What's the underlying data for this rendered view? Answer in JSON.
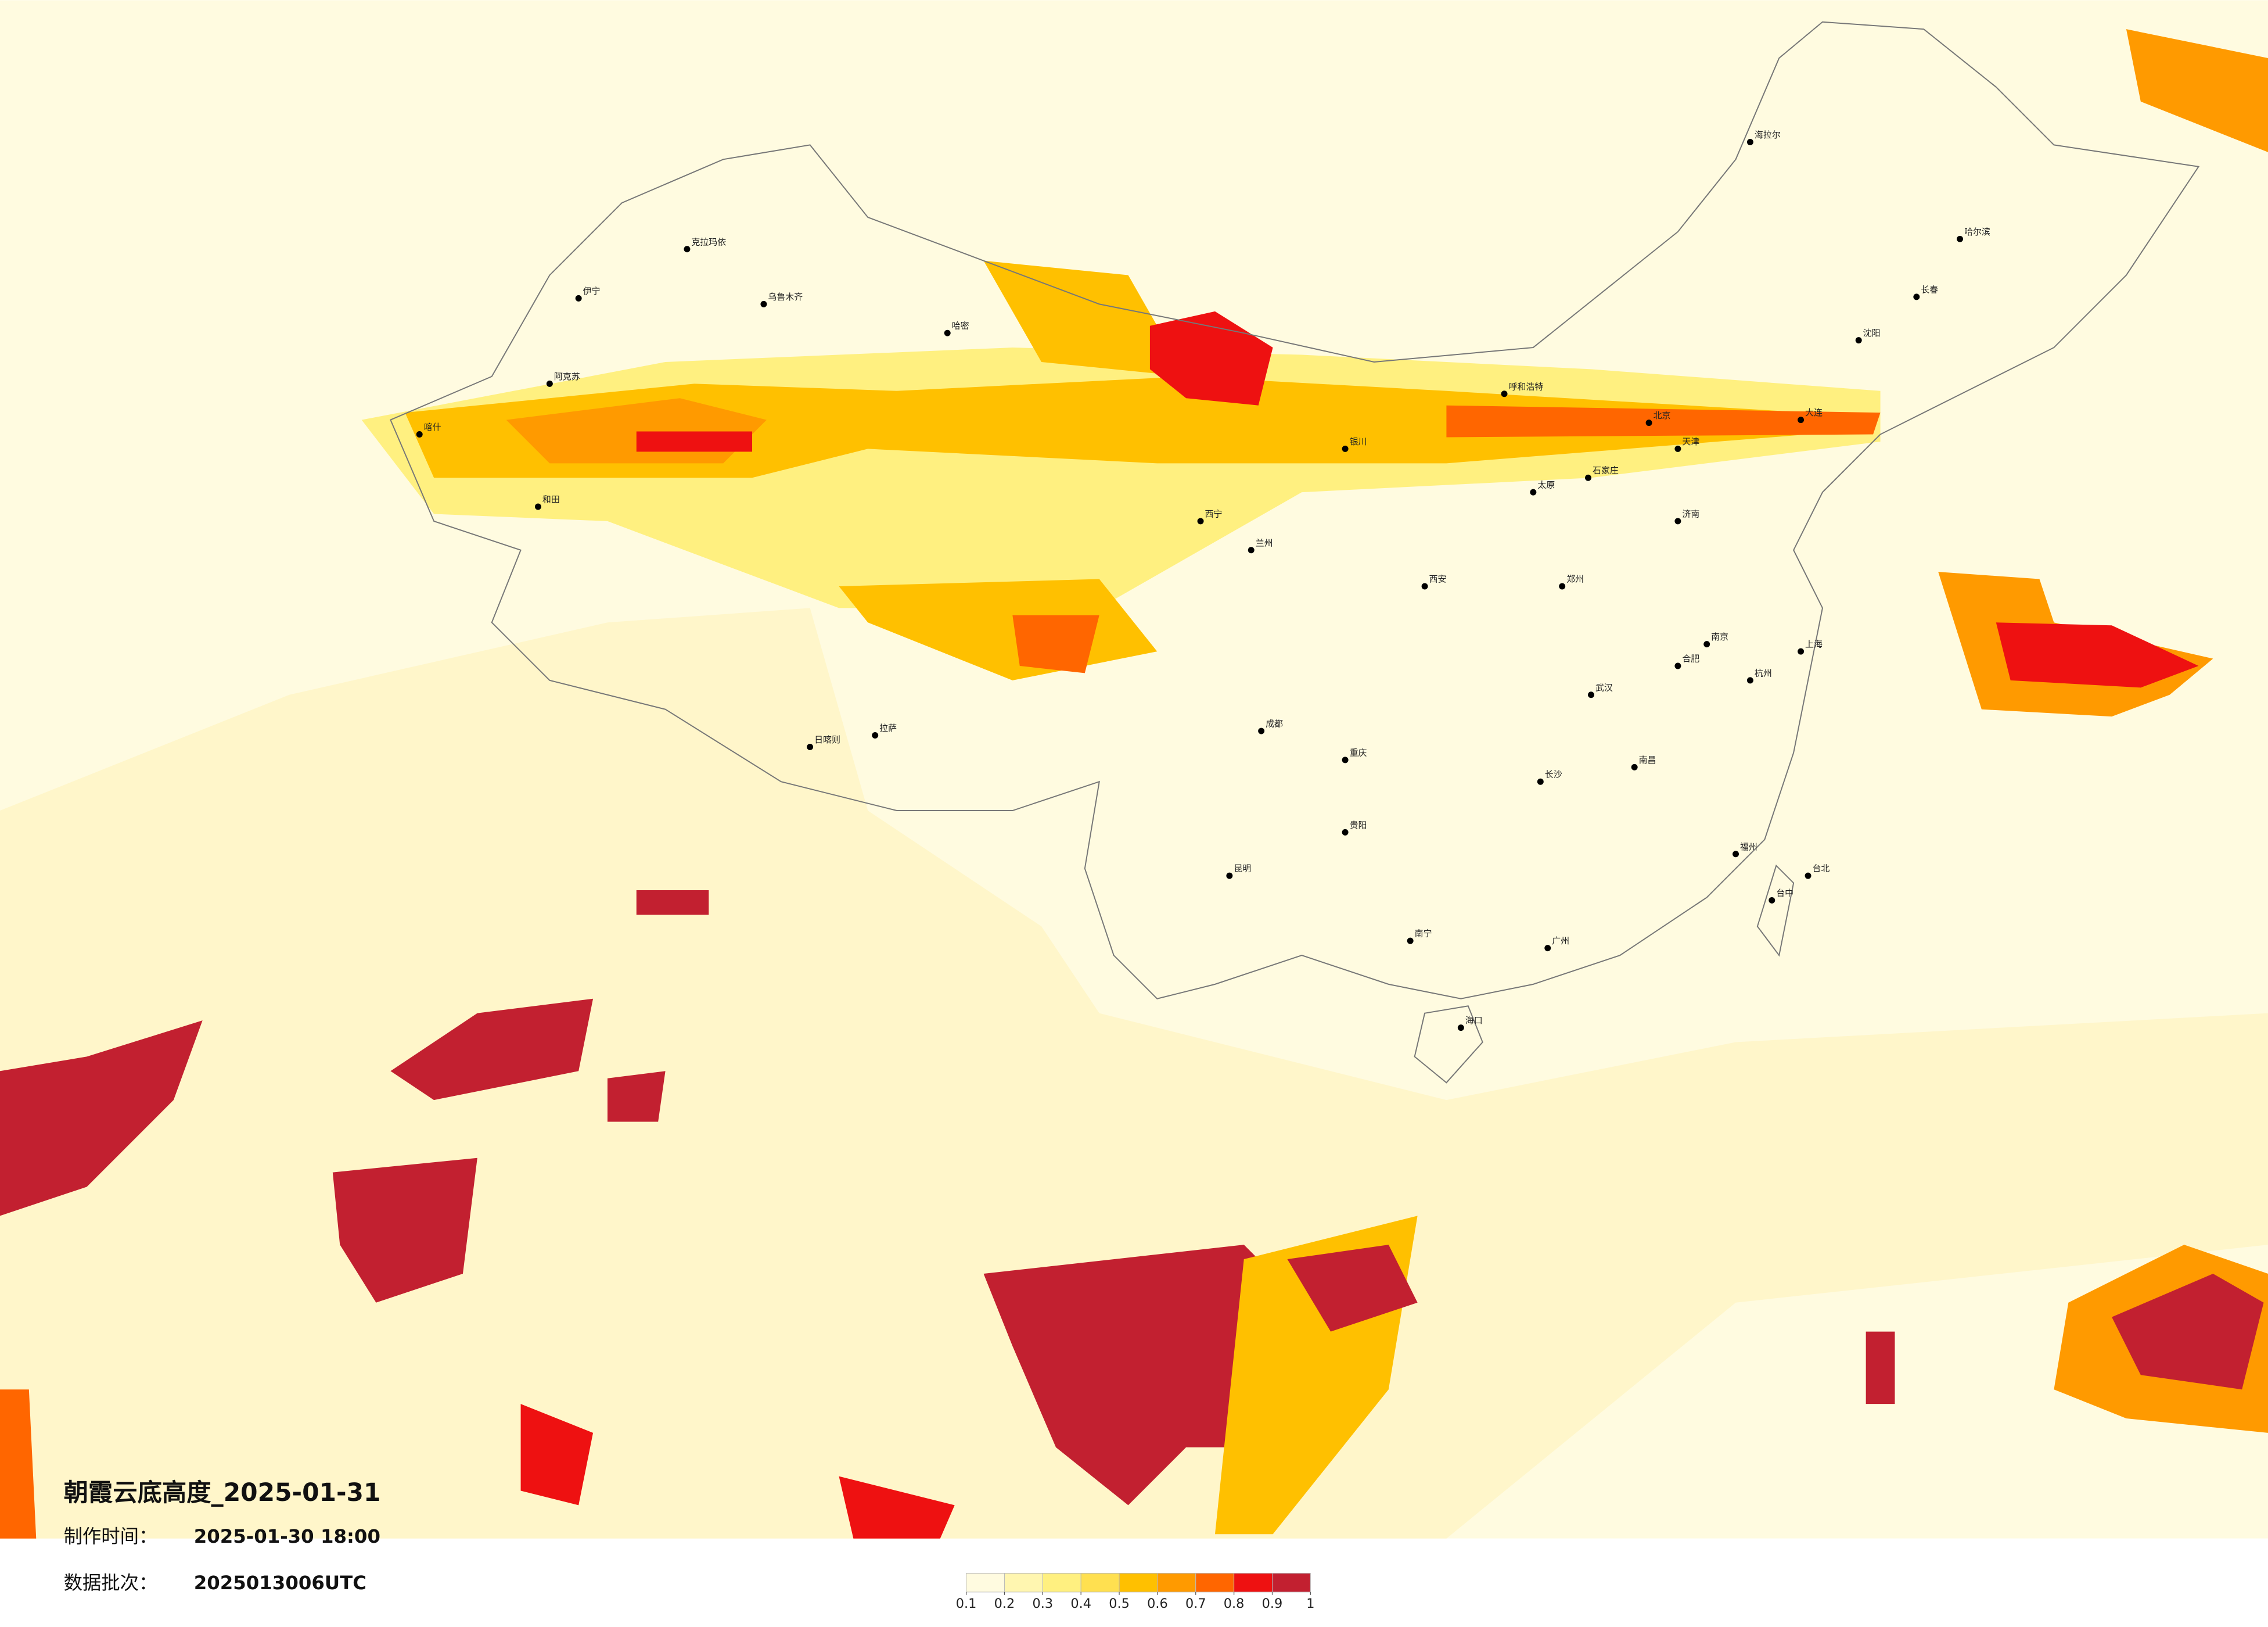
{
  "header": {
    "title": "朝霞云底高度_2025-01-31",
    "made_label": "制作时间：",
    "made_value": "2025-01-30 18:00",
    "batch_label": "数据批次：",
    "batch_value": "2025013006UTC"
  },
  "legend": {
    "ticks": [
      0.1,
      0.2,
      0.3,
      0.4,
      0.5,
      0.6,
      0.7,
      0.8,
      0.9,
      1
    ],
    "colors": [
      "#fffbe0",
      "#fff6b0",
      "#fff080",
      "#ffe050",
      "#ffc000",
      "#ff9a00",
      "#ff6600",
      "#ee1111",
      "#c22030"
    ]
  },
  "map": {
    "cities": [
      "克拉玛依",
      "乌鲁木齐",
      "伊宁",
      "阿克苏",
      "喀什",
      "和田",
      "哈密",
      "拉萨",
      "日喀则",
      "西宁",
      "兰州",
      "银川",
      "呼和浩特",
      "北京",
      "天津",
      "石家庄",
      "太原",
      "济南",
      "郑州",
      "西安",
      "成都",
      "重庆",
      "贵阳",
      "昆明",
      "南宁",
      "海口",
      "广州",
      "长沙",
      "武汉",
      "南昌",
      "福州",
      "杭州",
      "上海",
      "南京",
      "合肥",
      "沈阳",
      "长春",
      "哈尔滨",
      "海拉尔",
      "台北",
      "台中",
      "大连"
    ]
  }
}
